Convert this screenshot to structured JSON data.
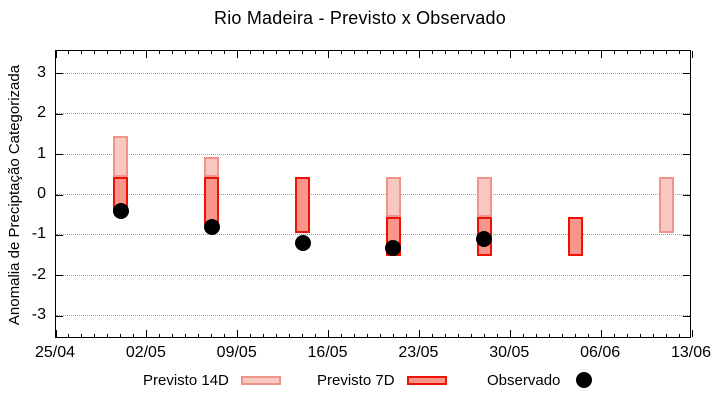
{
  "title": "Rio Madeira - Previsto x Observado",
  "y_axis": {
    "label": "Anomalia de Preciptação Categorizada",
    "ticks": [
      {
        "label": "3",
        "value": 3
      },
      {
        "label": "2",
        "value": 2
      },
      {
        "label": "1",
        "value": 1
      },
      {
        "label": "0",
        "value": 0
      },
      {
        "label": "-1",
        "value": -1
      },
      {
        "label": "-2",
        "value": -2
      },
      {
        "label": "-3",
        "value": -3
      }
    ],
    "range": [
      -3.55,
      3.55
    ]
  },
  "x_axis": {
    "total_days": 49,
    "minor_tick_step_days": 1,
    "major_tick_step_days": 7,
    "ticks": [
      {
        "label": "25/04",
        "day": 0
      },
      {
        "label": "02/05",
        "day": 7
      },
      {
        "label": "09/05",
        "day": 14
      },
      {
        "label": "16/05",
        "day": 21
      },
      {
        "label": "23/05",
        "day": 28
      },
      {
        "label": "30/05",
        "day": 35
      },
      {
        "label": "06/06",
        "day": 42
      },
      {
        "label": "13/06",
        "day": 49
      }
    ]
  },
  "legend": [
    {
      "label": "Previsto 14D",
      "swatch": "light-box"
    },
    {
      "label": "Previsto 7D",
      "swatch": "dark-box"
    },
    {
      "label": "Observado",
      "swatch": "black-dot"
    }
  ],
  "colors": {
    "previsto14d_fill": "#f9c9c1",
    "previsto14d_border": "#f0948a",
    "previsto7d_fill": "#fa958c",
    "previsto7d_border": "#ee1405",
    "observado": "#000000",
    "gridline": "#9a9a9a",
    "axis": "#000000"
  },
  "chart_data": {
    "type": "bar",
    "subtype": "range-bars-with-scatter",
    "x_unit": "days after 25/04",
    "grid": true,
    "legend_position": "bottom-center",
    "groups": [
      {
        "day": 5,
        "previsto14d": [
          0.45,
          1.45
        ],
        "previsto7d": [
          -0.45,
          0.45
        ],
        "observado": -0.4
      },
      {
        "day": 12,
        "previsto14d": [
          0.45,
          0.95
        ],
        "previsto7d": [
          -0.75,
          0.45
        ],
        "observado": -0.8
      },
      {
        "day": 19,
        "previsto14d": null,
        "previsto7d": [
          -0.95,
          0.45
        ],
        "observado": -1.2
      },
      {
        "day": 26,
        "previsto14d": [
          -0.55,
          0.45
        ],
        "previsto7d": [
          -1.5,
          -0.55
        ],
        "observado": -1.3
      },
      {
        "day": 33,
        "previsto14d": [
          -0.55,
          0.45
        ],
        "previsto7d": [
          -1.5,
          -0.55
        ],
        "observado": -1.1
      },
      {
        "day": 40,
        "previsto14d": null,
        "previsto7d": [
          -1.5,
          -0.55
        ],
        "observado": null
      },
      {
        "day": 47,
        "previsto14d": [
          -0.95,
          0.45
        ],
        "previsto7d": null,
        "observado": null
      }
    ]
  }
}
